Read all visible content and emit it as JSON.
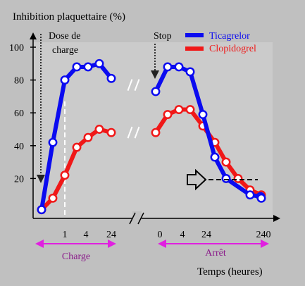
{
  "chart_data": {
    "type": "line",
    "title": "Inhibition plaquettaire (%)",
    "xlabel": "Temps (heures)",
    "ylabel": "",
    "ylim": [
      0,
      100
    ],
    "y_ticks": [
      "20",
      "40",
      "60",
      "80",
      "100"
    ],
    "grid": false,
    "legend_position": "top-right",
    "x_tick_labels": {
      "charge": [
        "1",
        "4",
        "24"
      ],
      "arret": [
        "0",
        "4",
        "24",
        "240"
      ]
    },
    "phases": [
      "Charge",
      "Arrêt"
    ],
    "annotations": {
      "dose": "Dose de\ncharge",
      "stop": "Stop"
    },
    "series": [
      {
        "name": "Ticagrelor",
        "color": "#0b0bf0",
        "segments": [
          [
            [
              0,
              1
            ],
            [
              0.5,
              42
            ],
            [
              1,
              80
            ],
            [
              2,
              88
            ],
            [
              3,
              88
            ],
            [
              4,
              90
            ],
            [
              24,
              81
            ]
          ],
          [
            [
              48,
              73
            ],
            [
              48.5,
              88
            ],
            [
              49,
              88
            ],
            [
              52,
              85
            ],
            [
              72,
              59
            ],
            [
              96,
              33
            ],
            [
              120,
              20
            ],
            [
              192,
              10
            ],
            [
              216,
              9
            ],
            [
              240,
              8
            ]
          ]
        ]
      },
      {
        "name": "Clopidogrel",
        "color": "#f01818",
        "segments": [
          [
            [
              0,
              1
            ],
            [
              0.5,
              8
            ],
            [
              1,
              22
            ],
            [
              2,
              39
            ],
            [
              3,
              45
            ],
            [
              4,
              50
            ],
            [
              24,
              48
            ]
          ],
          [
            [
              48,
              48
            ],
            [
              48.5,
              59
            ],
            [
              49,
              62
            ],
            [
              52,
              62
            ],
            [
              72,
              52
            ],
            [
              96,
              42
            ],
            [
              120,
              30
            ],
            [
              144,
              20
            ],
            [
              192,
              13
            ],
            [
              240,
              10
            ]
          ]
        ]
      }
    ]
  }
}
